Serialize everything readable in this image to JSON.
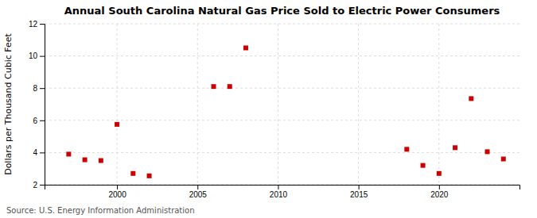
{
  "chart_data": {
    "type": "scatter",
    "title": "Annual South Carolina Natural Gas Price Sold to Electric Power Consumers",
    "ylabel": "Dollars per Thousand Cubic Feet",
    "annotation": "Source: U.S. Energy Information Administration",
    "x": [
      1997,
      1998,
      1999,
      2000,
      2001,
      2002,
      2006,
      2007,
      2008,
      2018,
      2019,
      2020,
      2021,
      2022,
      2023,
      2024
    ],
    "values": [
      3.9,
      3.55,
      3.5,
      5.75,
      2.7,
      2.55,
      8.1,
      8.1,
      10.5,
      4.2,
      3.2,
      2.7,
      4.3,
      7.35,
      4.05,
      3.6
    ],
    "color": "#cc0000",
    "marker": "square",
    "xlim": [
      1995.5,
      2025
    ],
    "ylim": [
      2,
      12
    ],
    "xticks": [
      2000,
      2005,
      2010,
      2015,
      2020
    ],
    "yticks": [
      2,
      4,
      6,
      8,
      10,
      12
    ],
    "grid": true
  }
}
